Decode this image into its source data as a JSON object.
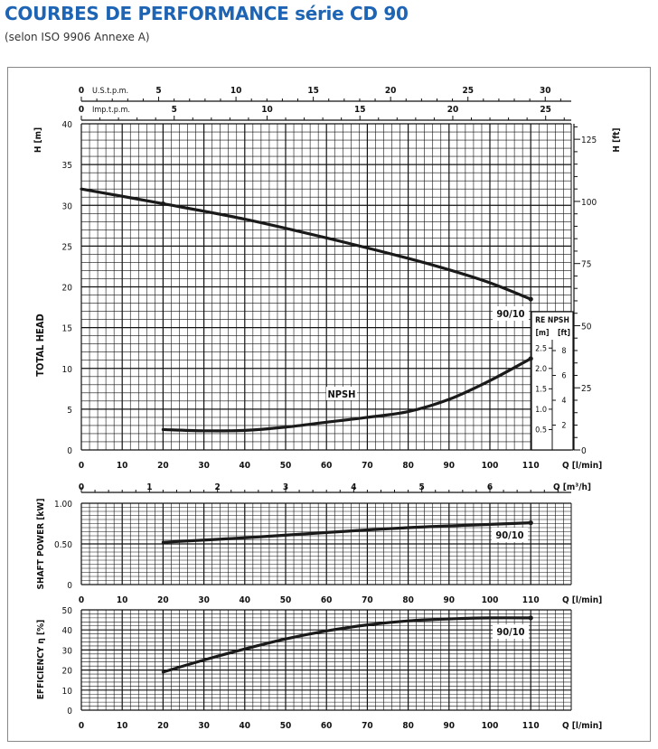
{
  "header": {
    "title": "COURBES DE PERFORMANCE série CD 90",
    "subtitle": "(selon ISO 9906 Annexe A)"
  },
  "colors": {
    "title": "#1d64b4",
    "curve": "#1a1a1a",
    "grid": "#111111",
    "frame": "#888888"
  },
  "chart_data": [
    {
      "type": "line",
      "name": "head",
      "ylabel": "TOTAL HEAD",
      "yaxis_left_label": "H [m]",
      "yaxis_right_label": "H [ft]",
      "ylim": [
        0,
        40
      ],
      "xlim": [
        0,
        120
      ],
      "xlabel": "Q [l/min]",
      "x_ticks": [
        0,
        10,
        20,
        30,
        40,
        50,
        60,
        70,
        80,
        90,
        100,
        110
      ],
      "y_ticks": [
        0,
        5,
        10,
        15,
        20,
        25,
        30,
        35,
        40
      ],
      "y_ticks_ft": [
        0,
        25,
        50,
        75,
        100,
        125
      ],
      "top_axes": [
        {
          "label": "U.S.t.p.m.",
          "ticks": [
            0,
            5,
            10,
            15,
            20,
            25,
            30
          ]
        },
        {
          "label": "Imp.t.p.m.",
          "ticks": [
            0,
            5,
            10,
            15,
            20,
            25
          ]
        }
      ],
      "x_m3h_label": "Q [m³/h]",
      "x_m3h_ticks": [
        0,
        1,
        2,
        3,
        4,
        5,
        6
      ],
      "grid": true,
      "series": [
        {
          "name": "90/10",
          "x": [
            0,
            20,
            40,
            60,
            80,
            90,
            100,
            110
          ],
          "y": [
            32,
            30.2,
            28.3,
            26,
            23.5,
            22.1,
            20.5,
            18.5
          ]
        },
        {
          "name": "NPSH",
          "x": [
            20,
            30,
            40,
            50,
            60,
            70,
            80,
            90,
            100,
            110
          ],
          "y": [
            2.5,
            2.35,
            2.4,
            2.8,
            3.4,
            4.0,
            4.7,
            6.2,
            8.5,
            11.2
          ]
        }
      ],
      "npsh_inset": {
        "header": "RE NPSH",
        "units": [
          "[m]",
          "[ft]"
        ],
        "m_ticks": [
          0.5,
          1.0,
          1.5,
          2.0,
          2.5
        ],
        "ft_ticks": [
          2,
          4,
          6,
          8
        ]
      }
    },
    {
      "type": "line",
      "name": "power",
      "ylabel": "SHAFT POWER [kW]",
      "ylim": [
        0,
        1
      ],
      "xlim": [
        0,
        120
      ],
      "xlabel": "Q [l/min]",
      "x_ticks": [
        0,
        10,
        20,
        30,
        40,
        50,
        60,
        70,
        80,
        90,
        100,
        110
      ],
      "y_ticks": [
        "0",
        "0.50",
        "1.00"
      ],
      "grid": true,
      "series": [
        {
          "name": "90/10",
          "x": [
            20,
            40,
            60,
            80,
            100,
            110
          ],
          "y": [
            0.52,
            0.575,
            0.64,
            0.7,
            0.74,
            0.76
          ]
        }
      ]
    },
    {
      "type": "line",
      "name": "efficiency",
      "ylabel": "EFFICIENCY η [%]",
      "ylim": [
        0,
        50
      ],
      "xlim": [
        0,
        120
      ],
      "xlabel": "Q [l/min]",
      "x_ticks": [
        0,
        10,
        20,
        30,
        40,
        50,
        60,
        70,
        80,
        90,
        100,
        110
      ],
      "y_ticks": [
        0,
        10,
        20,
        30,
        40,
        50
      ],
      "grid": true,
      "series": [
        {
          "name": "90/10",
          "x": [
            20,
            30,
            40,
            50,
            60,
            70,
            80,
            90,
            100,
            110
          ],
          "y": [
            19,
            25,
            30.5,
            35.5,
            39.5,
            42.5,
            44.5,
            45.5,
            46,
            46
          ]
        }
      ]
    }
  ]
}
